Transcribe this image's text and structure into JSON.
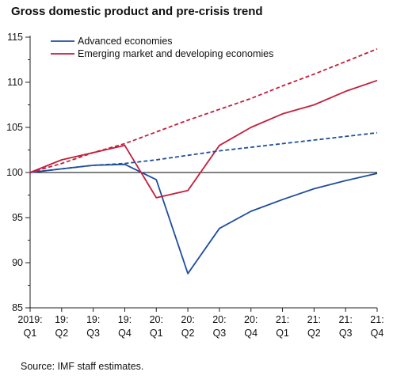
{
  "chart_data": {
    "type": "line",
    "title": "Gross domestic product and pre-crisis trend",
    "xlabel": "",
    "ylabel": "",
    "x": [
      "2019:Q1",
      "19:Q2",
      "19:Q3",
      "19:Q4",
      "20:Q1",
      "20:Q2",
      "20:Q3",
      "20:Q4",
      "21:Q1",
      "21:Q2",
      "21:Q3",
      "21:Q4"
    ],
    "x_labels": [
      {
        "top": "2019:",
        "bottom": "Q1"
      },
      {
        "top": "19:",
        "bottom": "Q2"
      },
      {
        "top": "19:",
        "bottom": "Q3"
      },
      {
        "top": "19:",
        "bottom": "Q4"
      },
      {
        "top": "20:",
        "bottom": "Q1"
      },
      {
        "top": "20:",
        "bottom": "Q2"
      },
      {
        "top": "20:",
        "bottom": "Q3"
      },
      {
        "top": "20:",
        "bottom": "Q4"
      },
      {
        "top": "21:",
        "bottom": "Q1"
      },
      {
        "top": "21:",
        "bottom": "Q2"
      },
      {
        "top": "21:",
        "bottom": "Q3"
      },
      {
        "top": "21:",
        "bottom": "Q4"
      }
    ],
    "ylim": [
      85,
      115
    ],
    "yticks": [
      85,
      90,
      95,
      100,
      105,
      110,
      115
    ],
    "ytick_labels": [
      "85",
      "90",
      "95",
      "100",
      "105",
      "110",
      "115"
    ],
    "reference_line": 100,
    "legend_position": "top-left",
    "series": [
      {
        "name": "Advanced economies",
        "color": "#1f4e9c",
        "style": "solid",
        "values": [
          100,
          100.4,
          100.8,
          100.9,
          99.2,
          88.8,
          93.8,
          95.7,
          97.0,
          98.2,
          99.1,
          99.9
        ]
      },
      {
        "name": "Emerging market and developing economies",
        "color": "#c41e3a",
        "style": "solid",
        "values": [
          100,
          101.4,
          102.2,
          103.0,
          97.2,
          98.0,
          103.0,
          105.0,
          106.5,
          107.5,
          109.0,
          110.2
        ]
      },
      {
        "name": "",
        "color": "#1f4e9c",
        "style": "dashed",
        "values": [
          100,
          100.4,
          100.8,
          101.0,
          101.4,
          101.9,
          102.4,
          102.8,
          103.2,
          103.6,
          104.0,
          104.4
        ]
      },
      {
        "name": "",
        "color": "#c41e3a",
        "style": "dashed",
        "values": [
          100,
          101.0,
          102.2,
          103.2,
          104.5,
          105.8,
          107.0,
          108.2,
          109.6,
          110.9,
          112.3,
          113.7
        ]
      }
    ]
  },
  "footer": {
    "source": "Source: IMF staff estimates."
  }
}
